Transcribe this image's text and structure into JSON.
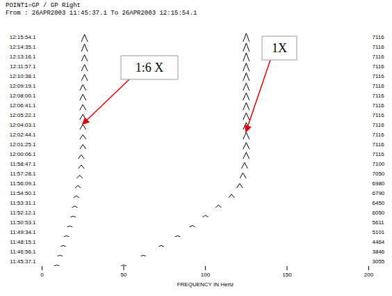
{
  "chart_data": {
    "type": "waterfall",
    "title": "POINT1=GP / GP Right",
    "subtitle": "From : 26APR2003 11:45:37.1 To 26APR2003 12:15:54.1",
    "x_label": "FREQUENCY IN Hertz",
    "xlim": [
      0,
      200
    ],
    "xticks": [
      0,
      50,
      100,
      150,
      200
    ],
    "ylim": [
      0,
      10
    ],
    "tick_labels": "x",
    "grid": false,
    "color": "#000000",
    "annotations": [
      {
        "text": "1:6 X",
        "x": 25,
        "series": "12:04:03.1"
      },
      {
        "text": "1X",
        "x": 125,
        "series": "12:02:44.1"
      }
    ],
    "series": [
      {
        "name": "12:15:54.1",
        "speed": 7116,
        "x": [
          0,
          24,
          26,
          28,
          123,
          125,
          127,
          200
        ],
        "values": [
          0,
          0,
          8,
          0,
          0,
          9,
          0,
          0
        ]
      },
      {
        "name": "12:14:35.1",
        "speed": 7116,
        "x": [
          0,
          24,
          26,
          28,
          123,
          125,
          127,
          200
        ],
        "values": [
          0,
          0,
          8,
          0,
          0,
          9,
          0,
          0
        ]
      },
      {
        "name": "12:13:16.1",
        "speed": 7116,
        "x": [
          0,
          24,
          26,
          28,
          123,
          125,
          127,
          200
        ],
        "values": [
          0,
          0,
          7,
          0,
          0,
          9,
          0,
          0
        ]
      },
      {
        "name": "12:11:57.1",
        "speed": 7116,
        "x": [
          0,
          24,
          26,
          28,
          123,
          125,
          127,
          200
        ],
        "values": [
          0,
          0,
          7,
          0,
          0,
          8.5,
          0,
          0
        ]
      },
      {
        "name": "12:10:38.1",
        "speed": 7116,
        "x": [
          0,
          24,
          26,
          28,
          123,
          125,
          127,
          200
        ],
        "values": [
          0,
          0,
          7,
          0,
          0,
          8.5,
          0,
          0
        ]
      },
      {
        "name": "12:09:19.1",
        "speed": 7116,
        "x": [
          0,
          23,
          25,
          27,
          123,
          125,
          127,
          200
        ],
        "values": [
          0,
          0,
          6.5,
          0,
          0,
          8,
          0,
          0
        ]
      },
      {
        "name": "12:08:00.1",
        "speed": 7116,
        "x": [
          0,
          23,
          25,
          27,
          123,
          125,
          127,
          200
        ],
        "values": [
          0,
          0,
          6.5,
          0,
          0,
          8,
          0,
          0
        ]
      },
      {
        "name": "12:06:41.1",
        "speed": 7116,
        "x": [
          0,
          23,
          25,
          27,
          123,
          125,
          127,
          200
        ],
        "values": [
          0,
          0,
          6,
          0,
          0,
          8,
          0,
          0
        ]
      },
      {
        "name": "12:05:22.1",
        "speed": 7116,
        "x": [
          0,
          23,
          25,
          27,
          123,
          125,
          127,
          200
        ],
        "values": [
          0,
          0,
          6,
          0,
          0,
          7.5,
          0,
          0
        ]
      },
      {
        "name": "12:04:03.1",
        "speed": 7116,
        "x": [
          0,
          23,
          25,
          27,
          123,
          125,
          127,
          200
        ],
        "values": [
          0,
          0,
          5.5,
          0,
          0,
          7.5,
          0,
          0
        ]
      },
      {
        "name": "12:02:44.1",
        "speed": 7116,
        "x": [
          0,
          23,
          25,
          27,
          123,
          125,
          127,
          200
        ],
        "values": [
          0,
          0,
          5,
          0,
          0,
          7.5,
          0,
          0
        ]
      },
      {
        "name": "12:01:25.1",
        "speed": 7116,
        "x": [
          0,
          23,
          25,
          27,
          123,
          125,
          127,
          200
        ],
        "values": [
          0,
          0,
          5,
          0,
          0,
          7,
          0,
          0
        ]
      },
      {
        "name": "12:00:06.1",
        "speed": 7116,
        "x": [
          0,
          22,
          24,
          26,
          123,
          125,
          127,
          200
        ],
        "values": [
          0,
          0,
          4.5,
          0,
          0,
          7,
          0,
          0
        ]
      },
      {
        "name": "11:58:47.1",
        "speed": 7100,
        "x": [
          0,
          22,
          24,
          26,
          122,
          124,
          126,
          200
        ],
        "values": [
          0,
          0,
          4,
          0,
          0,
          6.5,
          0,
          0
        ]
      },
      {
        "name": "11:57:28.1",
        "speed": 7050,
        "x": [
          0,
          21,
          23,
          25,
          121,
          123,
          125,
          200
        ],
        "values": [
          0,
          0,
          3.5,
          0,
          0,
          6,
          0,
          0
        ]
      },
      {
        "name": "11:56:09.1",
        "speed": 6980,
        "x": [
          0,
          20,
          22,
          24,
          119,
          121,
          123,
          200
        ],
        "values": [
          0,
          0,
          3,
          0,
          0,
          5,
          0,
          0
        ]
      },
      {
        "name": "11:54:50.1",
        "speed": 6790,
        "x": [
          0,
          19,
          21,
          23,
          114,
          116,
          118,
          200
        ],
        "values": [
          0,
          0,
          2.5,
          0,
          0,
          4,
          0,
          0
        ]
      },
      {
        "name": "11:53:31.1",
        "speed": 6450,
        "x": [
          0,
          18,
          20,
          22,
          106,
          108,
          110,
          200
        ],
        "values": [
          0,
          0,
          2,
          0,
          0,
          3,
          0,
          0
        ]
      },
      {
        "name": "11:52:12.1",
        "speed": 6050,
        "x": [
          0,
          17,
          19,
          21,
          98,
          100,
          102,
          200
        ],
        "values": [
          0,
          0,
          1.5,
          0,
          0,
          2.5,
          0,
          0
        ]
      },
      {
        "name": "11:50:53.1",
        "speed": 5611,
        "x": [
          0,
          15,
          17,
          19,
          90,
          92,
          94,
          200
        ],
        "values": [
          0,
          0,
          1.5,
          0,
          0,
          2,
          0,
          0
        ]
      },
      {
        "name": "11:49:34.1",
        "speed": 5101,
        "x": [
          0,
          13,
          15,
          17,
          81,
          83,
          85,
          200
        ],
        "values": [
          0,
          0,
          1.5,
          0,
          0,
          1.5,
          0,
          0
        ]
      },
      {
        "name": "11:48:15.1",
        "speed": 4464,
        "x": [
          0,
          11,
          13,
          15,
          71,
          73,
          75,
          200
        ],
        "values": [
          0,
          0,
          1.5,
          0,
          0,
          1.5,
          0,
          0
        ]
      },
      {
        "name": "11:46:56.1",
        "speed": 3846,
        "x": [
          0,
          9,
          11,
          13,
          60,
          62,
          64,
          200
        ],
        "values": [
          0,
          0,
          1.5,
          0,
          0,
          1.5,
          0,
          0
        ]
      },
      {
        "name": "11:45:37.1",
        "speed": 3055,
        "x": [
          0,
          7,
          9,
          11,
          48,
          50,
          52,
          200
        ],
        "values": [
          0,
          0,
          1.5,
          0,
          0,
          1.5,
          0,
          0
        ]
      }
    ]
  }
}
